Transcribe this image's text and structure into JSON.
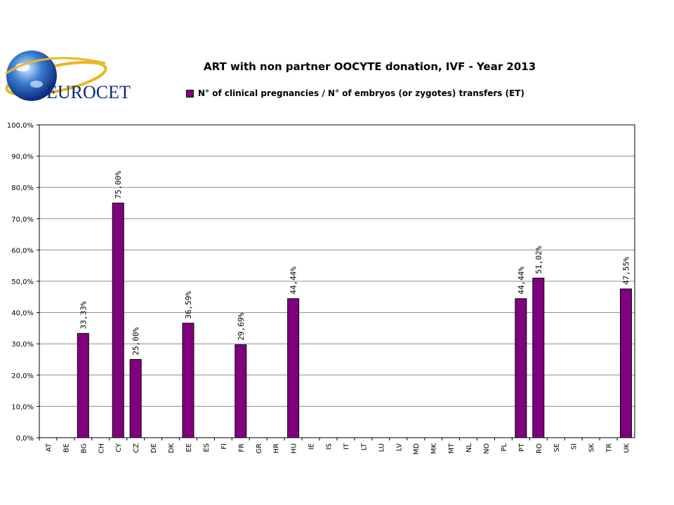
{
  "logo": {
    "text": "EUROCET"
  },
  "chart_data": {
    "type": "bar",
    "title": "ART with non partner OOCYTE donation, IVF - Year 2013",
    "legend": "N° of clinical pregnancies / N° of embryos (or zygotes) transfers (ET)",
    "legend_position": "top",
    "grid": true,
    "ylim": [
      0,
      100
    ],
    "y_ticks": [
      "0,0%",
      "10,0%",
      "20,0%",
      "30,0%",
      "40,0%",
      "50,0%",
      "60,0%",
      "70,0%",
      "80,0%",
      "90,0%",
      "100,0%"
    ],
    "categories": [
      "AT",
      "BE",
      "BG",
      "CH",
      "CY",
      "CZ",
      "DE",
      "DK",
      "EE",
      "ES",
      "FI",
      "FR",
      "GR",
      "HR",
      "HU",
      "IE",
      "IS",
      "IT",
      "LT",
      "LU",
      "LV",
      "MD",
      "MK",
      "MT",
      "NL",
      "NO",
      "PL",
      "PT",
      "RO",
      "SE",
      "SI",
      "SK",
      "TR",
      "UK"
    ],
    "values": [
      null,
      null,
      33.33,
      null,
      75.0,
      25.0,
      null,
      null,
      36.59,
      null,
      null,
      29.69,
      null,
      null,
      44.44,
      null,
      null,
      null,
      null,
      null,
      null,
      null,
      null,
      null,
      null,
      null,
      null,
      44.44,
      51.02,
      null,
      null,
      null,
      null,
      47.55
    ],
    "labels": [
      null,
      null,
      "33,33%",
      null,
      "75,00%",
      "25,00%",
      null,
      null,
      "36,59%",
      null,
      null,
      "29,69%",
      null,
      null,
      "44,44%",
      null,
      null,
      null,
      null,
      null,
      null,
      null,
      null,
      null,
      null,
      null,
      null,
      "44,44%",
      "51,02%",
      null,
      null,
      null,
      null,
      "47,55%"
    ],
    "bar_color": "#800080"
  }
}
